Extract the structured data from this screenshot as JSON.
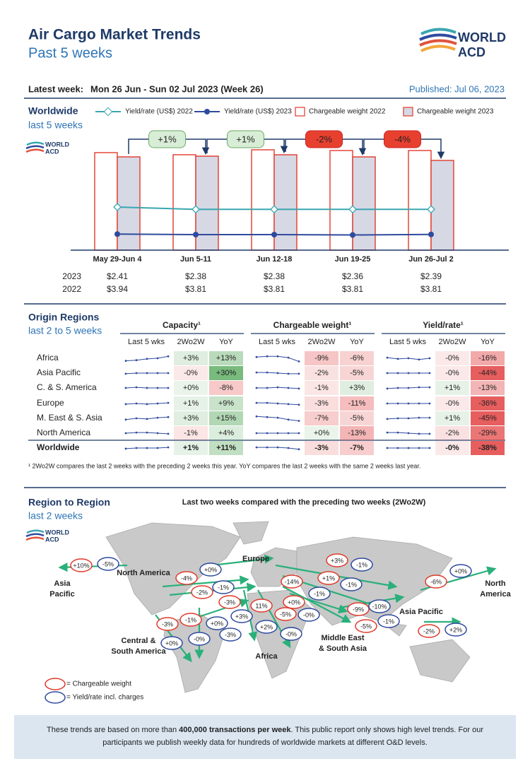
{
  "header": {
    "title": "Air Cargo Market Trends",
    "subtitle": "Past 5 weeks",
    "logo": [
      "WORLD",
      "ACD"
    ],
    "latest_week_label": "Latest week:",
    "latest_week": "Mon 26 Jun - Sun 02 Jul 2023 (Week 26)",
    "published": "Published: Jul 06, 2023"
  },
  "chart_data": {
    "type": "bar",
    "title": "Worldwide",
    "subtitle": "last 5 weeks",
    "categories": [
      "May 29-Jun 4",
      "Jun 5-11",
      "Jun 12-18",
      "Jun 19-25",
      "Jun 26-Jul 2"
    ],
    "ylim": [
      0,
      150
    ],
    "y2lim": [
      1.5,
      7.5
    ],
    "series": [
      {
        "name": "Yield/rate (US$) 2022",
        "kind": "line",
        "axis": "y2",
        "color": "#3aa6b0",
        "values": [
          3.94,
          3.81,
          3.81,
          3.81,
          3.81
        ],
        "value_labels": [
          "$3.94",
          "$3.81",
          "$3.81",
          "$3.81",
          "$3.81"
        ]
      },
      {
        "name": "Yield/rate (US$) 2023",
        "kind": "line",
        "axis": "y2",
        "color": "#2f4a9e",
        "values": [
          2.41,
          2.38,
          2.38,
          2.36,
          2.39
        ],
        "value_labels": [
          "$2.41",
          "$2.38",
          "$2.38",
          "$2.36",
          "$2.39"
        ]
      },
      {
        "name": "Chargeable weight 2022",
        "kind": "bar",
        "color": "#ffffff",
        "edge": "#e03a2c",
        "values": [
          138,
          135,
          142,
          141,
          141
        ]
      },
      {
        "name": "Chargeable weight 2023",
        "kind": "bar",
        "color": "#d6d8e4",
        "edge": "#e03a2c",
        "values": [
          132,
          133,
          135,
          132,
          127
        ]
      }
    ],
    "value_label_rows": [
      "2023",
      "2022"
    ],
    "changes": [
      1,
      1,
      -2,
      -4
    ],
    "change_labels": [
      "+1%",
      "+1%",
      "-2%",
      "-4%"
    ]
  },
  "origin_regions": {
    "title": "Origin Regions",
    "subtitle": "last 2 to 5 weeks",
    "groups": [
      "Capacity¹",
      "Chargeable weight¹",
      "Yield/rate¹"
    ],
    "columns": [
      "Last 5 wks",
      "2Wo2W",
      "YoY"
    ],
    "rows": [
      {
        "region": "Africa",
        "cells": [
          {
            "trend": [
              96,
              97,
              99,
              100,
              103
            ],
            "w2w": "+3%",
            "yoy": "+13%"
          },
          {
            "trend": [
              102,
              103,
              103,
              101,
              95
            ],
            "w2w": "-9%",
            "yoy": "-6%"
          },
          {
            "trend": [
              101,
              99,
              100,
              98,
              100
            ],
            "w2w": "-0%",
            "yoy": "-16%"
          }
        ]
      },
      {
        "region": "Asia Pacific",
        "cells": [
          {
            "trend": [
              99,
              100,
              100,
              100,
              100
            ],
            "w2w": "-0%",
            "yoy": "+30%"
          },
          {
            "trend": [
              101,
              101,
              100,
              99,
              99
            ],
            "w2w": "-2%",
            "yoy": "-5%"
          },
          {
            "trend": [
              100,
              100,
              100,
              100,
              100
            ],
            "w2w": "-0%",
            "yoy": "-44%"
          }
        ]
      },
      {
        "region": "C. & S. America",
        "cells": [
          {
            "trend": [
              100,
              101,
              100,
              100,
              100
            ],
            "w2w": "+0%",
            "yoy": "-8%"
          },
          {
            "trend": [
              100,
              100,
              101,
              100,
              99
            ],
            "w2w": "-1%",
            "yoy": "+3%"
          },
          {
            "trend": [
              99,
              100,
              100,
              101,
              101
            ],
            "w2w": "+1%",
            "yoy": "-13%"
          }
        ]
      },
      {
        "region": "Europe",
        "cells": [
          {
            "trend": [
              99,
              100,
              99,
              100,
              101
            ],
            "w2w": "+1%",
            "yoy": "+9%"
          },
          {
            "trend": [
              101,
              101,
              100,
              99,
              98
            ],
            "w2w": "-3%",
            "yoy": "-11%"
          },
          {
            "trend": [
              100,
              100,
              100,
              100,
              100
            ],
            "w2w": "-0%",
            "yoy": "-36%"
          }
        ]
      },
      {
        "region": "M. East & S. Asia",
        "cells": [
          {
            "trend": [
              98,
              100,
              99,
              101,
              102
            ],
            "w2w": "+3%",
            "yoy": "+15%"
          },
          {
            "trend": [
              103,
              102,
              101,
              98,
              96
            ],
            "w2w": "-7%",
            "yoy": "-5%"
          },
          {
            "trend": [
              99,
              100,
              100,
              101,
              101
            ],
            "w2w": "+1%",
            "yoy": "-45%"
          }
        ]
      },
      {
        "region": "North America",
        "cells": [
          {
            "trend": [
              100,
              101,
              101,
              100,
              99
            ],
            "w2w": "-1%",
            "yoy": "+4%"
          },
          {
            "trend": [
              100,
              100,
              100,
              100,
              100
            ],
            "w2w": "+0%",
            "yoy": "-13%"
          },
          {
            "trend": [
              101,
              101,
              100,
              99,
              99
            ],
            "w2w": "-2%",
            "yoy": "-29%"
          }
        ]
      },
      {
        "region": "Worldwide",
        "cells": [
          {
            "trend": [
              99,
              100,
              100,
              100,
              101
            ],
            "w2w": "+1%",
            "yoy": "+11%"
          },
          {
            "trend": [
              101,
              101,
              101,
              100,
              98
            ],
            "w2w": "-3%",
            "yoy": "-7%"
          },
          {
            "trend": [
              100,
              100,
              100,
              100,
              100
            ],
            "w2w": "-0%",
            "yoy": "-38%"
          }
        ]
      }
    ],
    "footnote": "¹ 2Wo2W compares the last 2 weeks with the preceding 2 weeks this year. YoY compares the last 2 weeks with the same 2 weeks last year."
  },
  "region_map": {
    "title": "Region to Region",
    "subtitle": "last 2 weeks",
    "caption": "Last two weeks compared with the preceding two weeks (2Wo2W)",
    "regions": [
      [
        "Asia",
        "Pacific"
      ],
      [
        "North America"
      ],
      [
        "Europe"
      ],
      [
        "Central &",
        "South America"
      ],
      [
        "Africa"
      ],
      [
        "Middle East",
        "& South Asia"
      ],
      [
        "Asia Pacific"
      ],
      [
        "North",
        "America"
      ]
    ],
    "bubbles": [
      {
        "label": "+10%",
        "kind": "weight"
      },
      {
        "label": "-5%",
        "kind": "yield"
      },
      {
        "label": "-4%",
        "kind": "weight"
      },
      {
        "label": "+0%",
        "kind": "yield"
      },
      {
        "label": "-2%",
        "kind": "weight"
      },
      {
        "label": "-1%",
        "kind": "yield"
      },
      {
        "label": "-3%",
        "kind": "weight"
      },
      {
        "label": "+3%",
        "kind": "yield"
      },
      {
        "label": "11%",
        "kind": "weight"
      },
      {
        "label": "-3%",
        "kind": "weight"
      },
      {
        "label": "-1%",
        "kind": "weight"
      },
      {
        "label": "+0%",
        "kind": "yield"
      },
      {
        "label": "+0%",
        "kind": "yield"
      },
      {
        "label": "-0%",
        "kind": "yield"
      },
      {
        "label": "-3%",
        "kind": "yield"
      },
      {
        "label": "+2%",
        "kind": "yield"
      },
      {
        "label": "-5%",
        "kind": "weight"
      },
      {
        "label": "-0%",
        "kind": "yield"
      },
      {
        "label": "+0%",
        "kind": "weight"
      },
      {
        "label": "-14%",
        "kind": "weight"
      },
      {
        "label": "-1%",
        "kind": "yield"
      },
      {
        "label": "-0%",
        "kind": "yield"
      },
      {
        "label": "+1%",
        "kind": "weight"
      },
      {
        "label": "-1%",
        "kind": "yield"
      },
      {
        "label": "+3%",
        "kind": "weight"
      },
      {
        "label": "-1%",
        "kind": "yield"
      },
      {
        "label": "-9%",
        "kind": "weight"
      },
      {
        "label": "-10%",
        "kind": "yield"
      },
      {
        "label": "-5%",
        "kind": "weight"
      },
      {
        "label": "-1%",
        "kind": "yield"
      },
      {
        "label": "-6%",
        "kind": "weight"
      },
      {
        "label": "+0%",
        "kind": "yield"
      },
      {
        "label": "-2%",
        "kind": "weight"
      },
      {
        "label": "+2%",
        "kind": "yield"
      }
    ],
    "legend": [
      "= Chargeable weight",
      "= Yield/rate incl. charges"
    ]
  },
  "footer": {
    "lines": [
      [
        "These trends are based on more than ",
        "400,000 transactions per week",
        ". This public report only shows high level trends. For our"
      ],
      [
        "participants we publish weekly data for hundreds of worldwide markets at different O&D levels."
      ]
    ]
  }
}
